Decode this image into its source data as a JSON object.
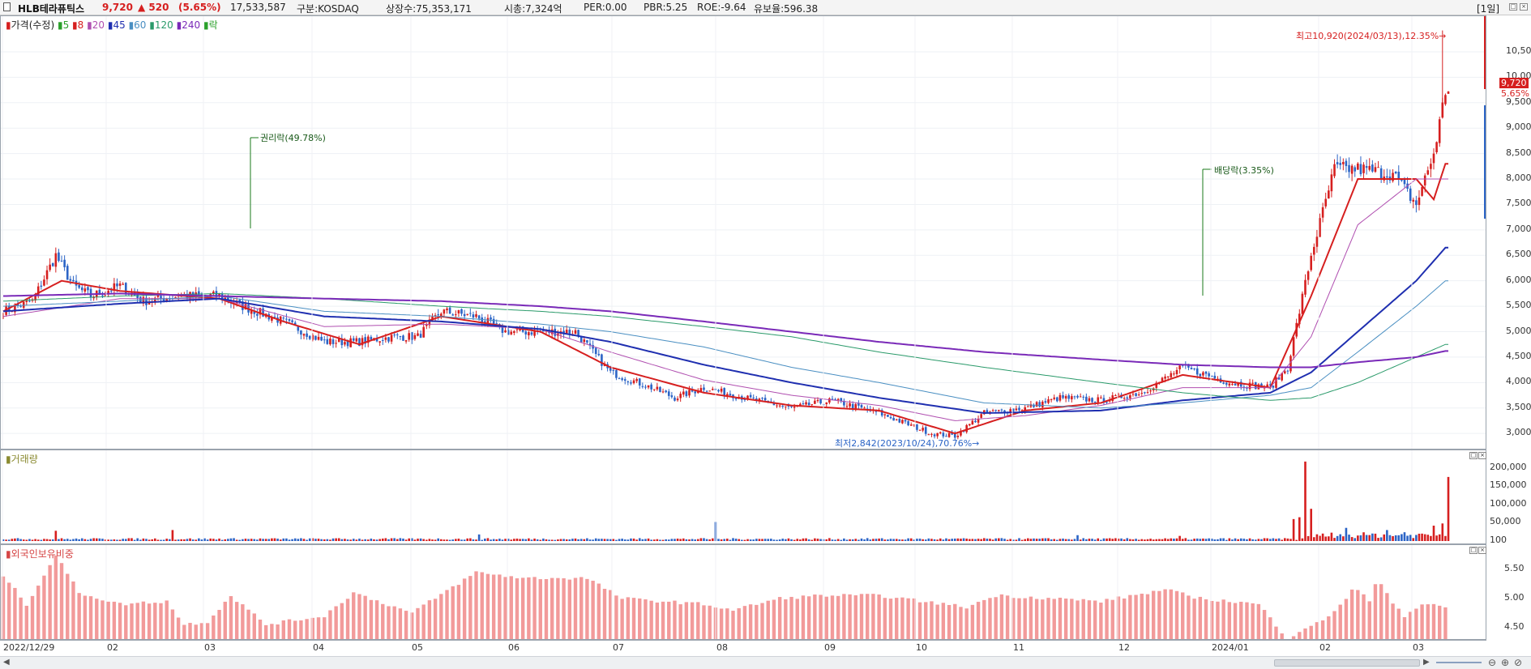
{
  "header": {
    "name": "HLB테라퓨틱스",
    "price": "9,720",
    "change": "▲ 520",
    "change_pct": "(5.65%)",
    "volume": "17,533,587",
    "market": "구분:KOSDAQ",
    "shares": "상장수:75,353,171",
    "mktcap": "시총:7,324억",
    "per": "PER:0.00",
    "pbr": "PBR:5.25",
    "roe": "ROE:-9.64",
    "reserve": "유보율:596.38",
    "period": "[1일]"
  },
  "colors": {
    "up": "#d61f1f",
    "down": "#2b64c6",
    "ma5": "#2aa02a",
    "ma8": "#d61f1f",
    "ma20": "#b04fb0",
    "ma45": "#1f2fb0",
    "ma60": "#4a8fc2",
    "ma120": "#2a9a6a",
    "ma240": "#7a2ab8"
  },
  "legend": {
    "price": {
      "title": "가격(수정)",
      "items": [
        "5",
        "8",
        "20",
        "45",
        "60",
        "120",
        "240",
        "락"
      ]
    },
    "volume": "거래량",
    "foreign": "외국인보유비중"
  },
  "annotations": {
    "high": "최고10,920(2024/03/13),12.35%→",
    "low": "최저2,842(2023/10/24),70.76%→",
    "rights": "권리락(49.78%)",
    "dividend": "배당락(3.35%)",
    "last_price": "9,720",
    "last_pct": "5.65%"
  },
  "chart_data": [
    {
      "type": "candlestick",
      "title": "가격(수정)",
      "yticks": [
        "10,500",
        "10,000",
        "9,500",
        "9,000",
        "8,500",
        "8,000",
        "7,500",
        "7,000",
        "6,500",
        "6,000",
        "5,500",
        "5,000",
        "4,500",
        "4,000",
        "3,500",
        "3,000"
      ],
      "ylim": [
        2700,
        11200
      ],
      "xticks": [
        "2022/12/29",
        "02",
        "03",
        "04",
        "05",
        "06",
        "07",
        "08",
        "09",
        "10",
        "11",
        "12",
        "2024/01",
        "02",
        "03"
      ],
      "series": [
        {
          "name": "가격(수정)",
          "close_anchors": [
            [
              0,
              5400
            ],
            [
              10,
              5600
            ],
            [
              18,
              6500
            ],
            [
              24,
              5900
            ],
            [
              30,
              5700
            ],
            [
              40,
              5900
            ],
            [
              48,
              5600
            ],
            [
              60,
              5700
            ],
            [
              74,
              5700
            ],
            [
              82,
              5500
            ],
            [
              96,
              5200
            ],
            [
              110,
              4800
            ],
            [
              122,
              4800
            ],
            [
              134,
              4900
            ],
            [
              142,
              4900
            ],
            [
              150,
              5400
            ],
            [
              162,
              5300
            ],
            [
              172,
              5000
            ],
            [
              184,
              5000
            ],
            [
              196,
              5000
            ],
            [
              208,
              4200
            ],
            [
              222,
              3900
            ],
            [
              230,
              3700
            ],
            [
              240,
              3900
            ],
            [
              254,
              3700
            ],
            [
              270,
              3500
            ],
            [
              284,
              3650
            ],
            [
              300,
              3400
            ],
            [
              318,
              3000
            ],
            [
              326,
              2950
            ],
            [
              336,
              3400
            ],
            [
              350,
              3500
            ],
            [
              362,
              3700
            ],
            [
              376,
              3650
            ],
            [
              390,
              3800
            ],
            [
              404,
              4300
            ],
            [
              420,
              4000
            ],
            [
              434,
              3900
            ],
            [
              440,
              4300
            ],
            [
              448,
              6500
            ],
            [
              456,
              8200
            ],
            [
              464,
              8200
            ],
            [
              476,
              8100
            ],
            [
              484,
              7500
            ],
            [
              490,
              8500
            ],
            [
              494,
              9720
            ]
          ]
        },
        {
          "name": "8",
          "anchors": [
            [
              0,
              5400
            ],
            [
              20,
              6000
            ],
            [
              40,
              5800
            ],
            [
              74,
              5650
            ],
            [
              96,
              5200
            ],
            [
              122,
              4750
            ],
            [
              150,
              5300
            ],
            [
              184,
              5000
            ],
            [
              208,
              4300
            ],
            [
              240,
              3800
            ],
            [
              270,
              3550
            ],
            [
              300,
              3450
            ],
            [
              326,
              3000
            ],
            [
              350,
              3450
            ],
            [
              376,
              3600
            ],
            [
              404,
              4150
            ],
            [
              434,
              3900
            ],
            [
              448,
              5700
            ],
            [
              464,
              8000
            ],
            [
              484,
              8000
            ],
            [
              490,
              7600
            ],
            [
              494,
              8300
            ]
          ]
        },
        {
          "name": "20",
          "anchors": [
            [
              0,
              5300
            ],
            [
              40,
              5650
            ],
            [
              74,
              5650
            ],
            [
              110,
              5100
            ],
            [
              150,
              5150
            ],
            [
              184,
              5050
            ],
            [
              208,
              4600
            ],
            [
              240,
              4050
            ],
            [
              270,
              3750
            ],
            [
              300,
              3550
            ],
            [
              326,
              3250
            ],
            [
              350,
              3350
            ],
            [
              376,
              3550
            ],
            [
              404,
              3900
            ],
            [
              434,
              3900
            ],
            [
              448,
              4900
            ],
            [
              464,
              7100
            ],
            [
              484,
              8000
            ],
            [
              494,
              8000
            ]
          ]
        },
        {
          "name": "45",
          "anchors": [
            [
              0,
              5400
            ],
            [
              40,
              5550
            ],
            [
              74,
              5650
            ],
            [
              110,
              5300
            ],
            [
              150,
              5200
            ],
            [
              184,
              5050
            ],
            [
              208,
              4800
            ],
            [
              240,
              4350
            ],
            [
              270,
              4000
            ],
            [
              300,
              3700
            ],
            [
              336,
              3400
            ],
            [
              376,
              3450
            ],
            [
              404,
              3650
            ],
            [
              434,
              3800
            ],
            [
              448,
              4200
            ],
            [
              464,
              5000
            ],
            [
              484,
              6000
            ],
            [
              494,
              6650
            ]
          ]
        },
        {
          "name": "60",
          "anchors": [
            [
              0,
              5500
            ],
            [
              40,
              5600
            ],
            [
              74,
              5700
            ],
            [
              110,
              5400
            ],
            [
              150,
              5300
            ],
            [
              184,
              5150
            ],
            [
              208,
              5000
            ],
            [
              240,
              4700
            ],
            [
              270,
              4300
            ],
            [
              300,
              4000
            ],
            [
              336,
              3600
            ],
            [
              376,
              3500
            ],
            [
              404,
              3600
            ],
            [
              434,
              3750
            ],
            [
              448,
              3900
            ],
            [
              464,
              4600
            ],
            [
              484,
              5500
            ],
            [
              494,
              6000
            ]
          ]
        },
        {
          "name": "120",
          "anchors": [
            [
              0,
              5600
            ],
            [
              40,
              5700
            ],
            [
              74,
              5750
            ],
            [
              110,
              5650
            ],
            [
              150,
              5500
            ],
            [
              184,
              5400
            ],
            [
              208,
              5300
            ],
            [
              240,
              5100
            ],
            [
              270,
              4900
            ],
            [
              300,
              4600
            ],
            [
              336,
              4300
            ],
            [
              376,
              4000
            ],
            [
              404,
              3800
            ],
            [
              434,
              3650
            ],
            [
              448,
              3700
            ],
            [
              464,
              4000
            ],
            [
              484,
              4500
            ],
            [
              494,
              4750
            ]
          ]
        },
        {
          "name": "240",
          "anchors": [
            [
              0,
              5700
            ],
            [
              40,
              5750
            ],
            [
              74,
              5700
            ],
            [
              110,
              5650
            ],
            [
              150,
              5600
            ],
            [
              184,
              5500
            ],
            [
              208,
              5400
            ],
            [
              240,
              5200
            ],
            [
              270,
              5000
            ],
            [
              300,
              4800
            ],
            [
              336,
              4600
            ],
            [
              376,
              4450
            ],
            [
              404,
              4350
            ],
            [
              434,
              4300
            ],
            [
              448,
              4300
            ],
            [
              464,
              4400
            ],
            [
              484,
              4500
            ],
            [
              494,
              4620
            ]
          ]
        }
      ]
    },
    {
      "type": "bar",
      "title": "거래량",
      "yticks": [
        "200,000",
        "150,000",
        "100,000",
        "50,000",
        "100"
      ],
      "ylim": [
        0,
        230000
      ],
      "spikes": [
        [
          18,
          28000
        ],
        [
          58,
          30000
        ],
        [
          163,
          18000
        ],
        [
          244,
          52000
        ],
        [
          368,
          16000
        ],
        [
          403,
          14000
        ],
        [
          442,
          60000
        ],
        [
          444,
          65000
        ],
        [
          446,
          217000
        ],
        [
          448,
          88000
        ],
        [
          460,
          36000
        ],
        [
          474,
          30000
        ],
        [
          480,
          24000
        ],
        [
          490,
          42000
        ],
        [
          493,
          48000
        ],
        [
          495,
          175000
        ]
      ]
    },
    {
      "type": "bar",
      "title": "외국인보유비중",
      "yticks": [
        "5.50",
        "5.00",
        "4.50"
      ],
      "ylim": [
        4.3,
        5.75
      ],
      "anchors": [
        [
          0,
          5.4
        ],
        [
          8,
          4.9
        ],
        [
          14,
          5.4
        ],
        [
          18,
          5.75
        ],
        [
          26,
          5.1
        ],
        [
          40,
          4.9
        ],
        [
          56,
          4.95
        ],
        [
          62,
          4.55
        ],
        [
          70,
          4.6
        ],
        [
          78,
          5.05
        ],
        [
          90,
          4.55
        ],
        [
          110,
          4.7
        ],
        [
          120,
          5.1
        ],
        [
          140,
          4.75
        ],
        [
          162,
          5.45
        ],
        [
          178,
          5.35
        ],
        [
          200,
          5.35
        ],
        [
          212,
          5.0
        ],
        [
          240,
          4.9
        ],
        [
          250,
          4.8
        ],
        [
          266,
          5.0
        ],
        [
          280,
          5.05
        ],
        [
          300,
          5.05
        ],
        [
          330,
          4.85
        ],
        [
          340,
          5.05
        ],
        [
          360,
          5.0
        ],
        [
          376,
          4.95
        ],
        [
          398,
          5.15
        ],
        [
          410,
          5.0
        ],
        [
          430,
          4.9
        ],
        [
          440,
          4.3
        ],
        [
          446,
          4.5
        ],
        [
          452,
          4.6
        ],
        [
          460,
          5.0
        ],
        [
          463,
          5.2
        ],
        [
          468,
          4.95
        ],
        [
          471,
          5.35
        ],
        [
          475,
          5.0
        ],
        [
          480,
          4.7
        ],
        [
          486,
          4.9
        ],
        [
          494,
          4.85
        ]
      ]
    }
  ]
}
